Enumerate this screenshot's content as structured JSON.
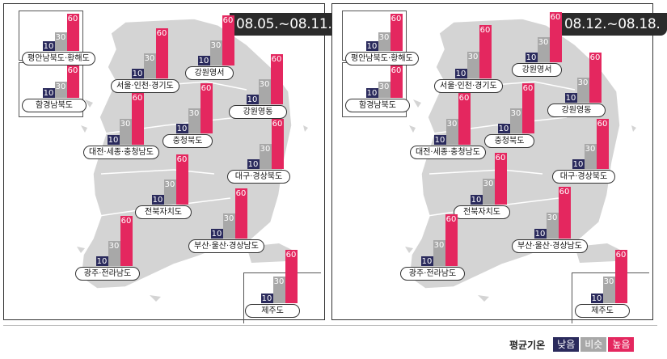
{
  "legend": {
    "title": "평균기온",
    "items": [
      {
        "label": "낮음",
        "color": "#2a2a5c"
      },
      {
        "label": "비슷",
        "color": "#a8a8a8"
      },
      {
        "label": "높음",
        "color": "#e4275f"
      }
    ]
  },
  "bar_labels": {
    "low": "10",
    "mid": "30",
    "high": "60"
  },
  "panels": [
    {
      "date": "08.05.~08.11.",
      "regions": {
        "pyeongnam": {
          "name": "평안남북도·황해도",
          "low": 10,
          "mid": 30,
          "high": 60
        },
        "hamgyeong": {
          "name": "함경남북도",
          "low": 10,
          "mid": 30,
          "high": 60
        },
        "seoul": {
          "name": "서울·인천·경기도",
          "low": 10,
          "mid": 30,
          "high": 60
        },
        "gangwon_w": {
          "name": "강원영서",
          "low": 10,
          "mid": 30,
          "high": 60
        },
        "gangwon_e": {
          "name": "강원영동",
          "low": 10,
          "mid": 30,
          "high": 60
        },
        "daejeon": {
          "name": "대전·세종·충청남도",
          "low": 10,
          "mid": 30,
          "high": 60
        },
        "chungbuk": {
          "name": "충청북도",
          "low": 10,
          "mid": 30,
          "high": 60
        },
        "daegu": {
          "name": "대구·경상북도",
          "low": 10,
          "mid": 30,
          "high": 60
        },
        "jeonbuk": {
          "name": "전북자치도",
          "low": 10,
          "mid": 30,
          "high": 60
        },
        "busan": {
          "name": "부산·울산·경상남도",
          "low": 10,
          "mid": 30,
          "high": 60
        },
        "gwangju": {
          "name": "광주·전라남도",
          "low": 10,
          "mid": 30,
          "high": 60
        },
        "jeju": {
          "name": "제주도",
          "low": 10,
          "mid": 30,
          "high": 60
        }
      }
    },
    {
      "date": "08.12.~08.18.",
      "regions": {
        "pyeongnam": {
          "name": "평안남북도·황해도",
          "low": 10,
          "mid": 30,
          "high": 60
        },
        "hamgyeong": {
          "name": "함경남북도",
          "low": 10,
          "mid": 30,
          "high": 60
        },
        "seoul": {
          "name": "서울·인천·경기도",
          "low": 10,
          "mid": 30,
          "high": 60
        },
        "gangwon_w": {
          "name": "강원영서",
          "low": 10,
          "mid": 30,
          "high": 60
        },
        "gangwon_e": {
          "name": "강원영동",
          "low": 10,
          "mid": 30,
          "high": 60
        },
        "daejeon": {
          "name": "대전·세종·충청남도",
          "low": 10,
          "mid": 30,
          "high": 60
        },
        "chungbuk": {
          "name": "충청북도",
          "low": 10,
          "mid": 30,
          "high": 60
        },
        "daegu": {
          "name": "대구·경상북도",
          "low": 10,
          "mid": 30,
          "high": 60
        },
        "jeonbuk": {
          "name": "전북자치도",
          "low": 10,
          "mid": 30,
          "high": 60
        },
        "busan": {
          "name": "부산·울산·경상남도",
          "low": 10,
          "mid": 30,
          "high": 60
        },
        "gwangju": {
          "name": "광주·전라남도",
          "low": 10,
          "mid": 30,
          "high": 60
        },
        "jeju": {
          "name": "제주도",
          "low": 10,
          "mid": 30,
          "high": 60
        }
      }
    }
  ]
}
